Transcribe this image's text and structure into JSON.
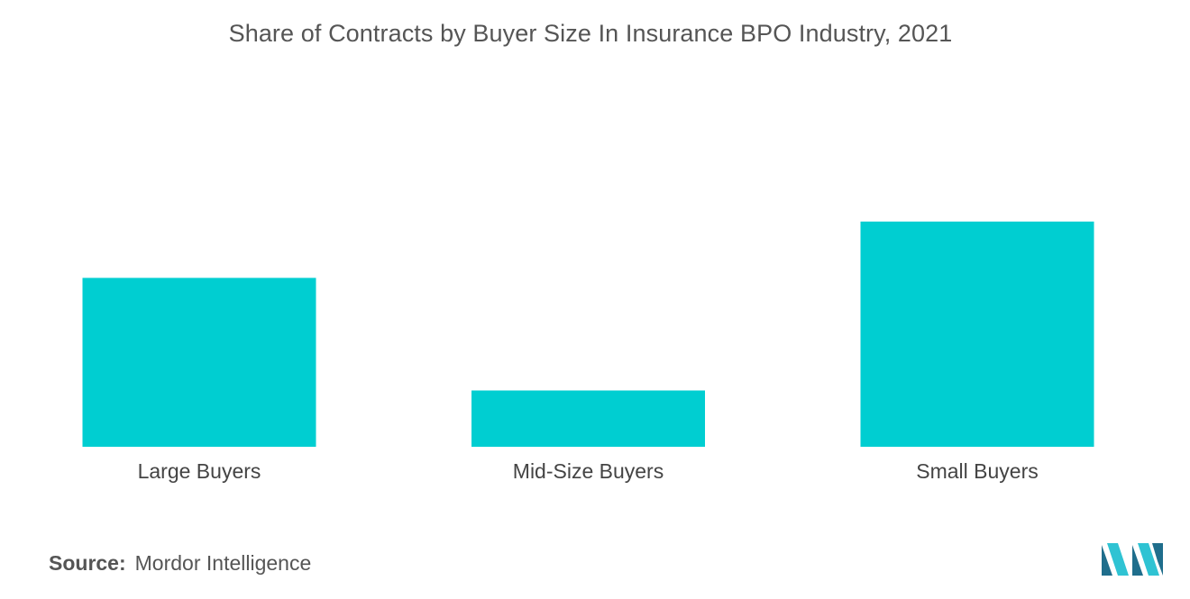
{
  "colors": {
    "bar": "#00CED1",
    "title": "#555555",
    "label": "#444444",
    "logo_dark": "#1f6e8c",
    "logo_light": "#2fc3d3"
  },
  "chart_data": {
    "type": "bar",
    "title": "Share of Contracts by Buyer Size In Insurance BPO Industry, 2021",
    "xlabel": "",
    "ylabel": "",
    "categories": [
      "Large Buyers",
      "Mid-Size Buyers",
      "Small Buyers"
    ],
    "values": [
      30,
      10,
      40
    ],
    "ylim": [
      0,
      40
    ],
    "grid": false,
    "legend": "none"
  },
  "footer": {
    "source_label": "Source:",
    "source_value": "Mordor Intelligence"
  },
  "logo": {
    "icon": "mordor-intelligence-logo-icon"
  }
}
